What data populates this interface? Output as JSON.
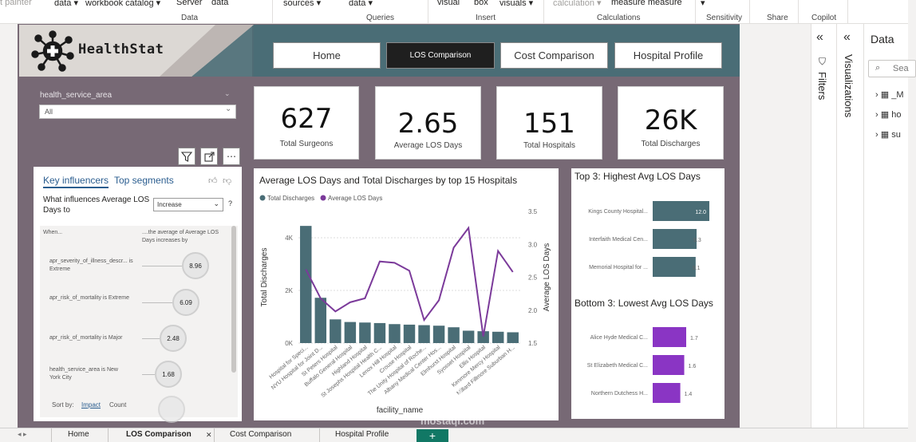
{
  "ribbon": {
    "items": [
      "t painter",
      "data",
      "workbook catalog",
      "Server",
      "data",
      "sources",
      "data",
      "visual",
      "box",
      "visuals",
      "calculation",
      "measure measure"
    ],
    "groups": [
      "Data",
      "Queries",
      "Insert",
      "Calculations",
      "Sensitivity",
      "Share",
      "Copilot"
    ]
  },
  "header": {
    "logo_text": "HealthStat"
  },
  "nav": {
    "home": "Home",
    "los": "LOS Comparison",
    "cost": "Cost Comparison",
    "profile": "Hospital Profile"
  },
  "slicer": {
    "label": "health_service_area",
    "value": "All"
  },
  "cards": [
    {
      "value": "627",
      "label": "Total Surgeons"
    },
    {
      "value": "2.65",
      "label": "Average LOS Days"
    },
    {
      "value": "151",
      "label": "Total Hospitals"
    },
    {
      "value": "26K",
      "label": "Total Discharges"
    }
  ],
  "key_influencers": {
    "tab1": "Key influencers",
    "tab2": "Top segments",
    "question": "What influences Average LOS Days to",
    "select_value": "Increase",
    "help": "?",
    "col_when": "When...",
    "col_then": "....the average of Average LOS Days increases by",
    "rows": [
      {
        "label": "apr_severity_of_illness_descr... is Extreme",
        "value": "8.96"
      },
      {
        "label": "apr_risk_of_mortality is Extreme",
        "value": "6.09"
      },
      {
        "label": "apr_risk_of_mortality is Major",
        "value": "2.48"
      },
      {
        "label": "health_service_area is New York City",
        "value": "1.68"
      }
    ],
    "sort_by": "Sort by:",
    "sort_impact": "Impact",
    "sort_count": "Count"
  },
  "chart_data": [
    {
      "type": "bar+line",
      "title": "Average LOS Days and Total Discharges by top 15 Hospitals",
      "legend": [
        "Total Discharges",
        "Average LOS Days"
      ],
      "xlabel": "facility_name",
      "ylabel": "Total Discharges",
      "y2label": "Average LOS Days",
      "ylim": [
        0,
        5000
      ],
      "y_ticks": [
        "0K",
        "2K",
        "4K"
      ],
      "y2lim": [
        1.5,
        3.5
      ],
      "y2_ticks": [
        "1.5",
        "2.0",
        "2.5",
        "3.0",
        "3.5"
      ],
      "categories": [
        "Hospital for Speci...",
        "NYU Hospital for Joint D...",
        "St Peters Hospital",
        "Buffalo General Hospital",
        "Highland Hospital",
        "St Josephs Hospital Health C...",
        "Lenox Hill Hospital",
        "Crouse Hospital",
        "The Unity Hospital of Roche...",
        "Albany Medical Center Hos...",
        "Elmhurst Hospital",
        "Syosset Hospital",
        "Ellis Hospital",
        "Kenmore Mercy Hospital",
        "Millard Fillmore Suburban H..."
      ],
      "series": [
        {
          "name": "Total Discharges",
          "values": [
            4450,
            1720,
            900,
            800,
            780,
            760,
            720,
            700,
            680,
            660,
            600,
            470,
            450,
            430,
            410
          ]
        },
        {
          "name": "Average LOS Days",
          "values": [
            2.62,
            2.18,
            1.98,
            2.12,
            2.18,
            2.74,
            2.72,
            2.6,
            1.85,
            2.15,
            2.95,
            3.25,
            1.6,
            2.9,
            2.58
          ]
        }
      ],
      "colors": {
        "bar": "#4a6d76",
        "line": "#7b3a9a"
      }
    },
    {
      "type": "bar",
      "title": "Top 3: Highest Avg LOS Days",
      "categories": [
        "Kings County Hospital...",
        "Interfaith Medical Cen...",
        "Memorial Hospital for ..."
      ],
      "values": [
        12.0,
        9.3,
        9.1
      ],
      "labels": [
        "12.0",
        "9.3",
        "9.1"
      ],
      "color": "#4a6d76"
    },
    {
      "type": "bar",
      "title": "Bottom 3: Lowest Avg LOS Days",
      "categories": [
        "Alice Hyde Medical C...",
        "St Elizabeth Medical C...",
        "Northern Dutchess H..."
      ],
      "values": [
        1.7,
        1.6,
        1.4
      ],
      "labels": [
        "1.7",
        "1.6",
        "1.4"
      ],
      "color": "#8a35c4"
    }
  ],
  "panes": {
    "filters": "Filters",
    "visualizations": "Visualizations",
    "data": "Data",
    "search_placeholder": "Sea"
  },
  "data_tables": [
    "_M",
    "ho",
    "su"
  ],
  "page_tabs": [
    "Home",
    "LOS Comparison",
    "Cost Comparison",
    "Hospital Profile"
  ],
  "add_page": "+",
  "watermark": {
    "main": "مستقل",
    "sub": "mostaql.com"
  }
}
